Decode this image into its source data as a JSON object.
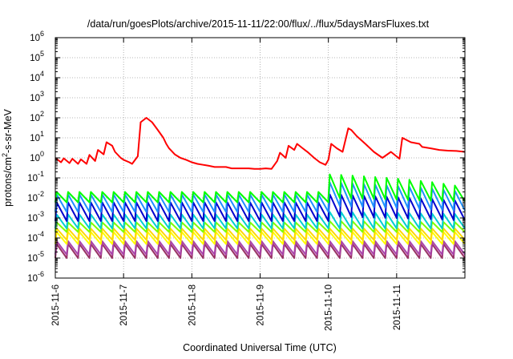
{
  "chart_data": {
    "type": "line",
    "title": "/data/run/goesPlots/archive/2015-11-11/22:00/flux/../flux/5daysMarsFluxes.txt",
    "xlabel": "Coordinated Universal Time (UTC)",
    "ylabel_prefix": "protons/cm",
    "ylabel_sup": "2",
    "ylabel_suffix": "-s-sr-MeV",
    "yscale": "log",
    "ylim": [
      1e-06,
      1000000.0
    ],
    "xlim": [
      "2015-11-06T00:00",
      "2015-11-12T00:00"
    ],
    "grid": true,
    "legend": "none",
    "x_ticks": [
      "2015-11-6",
      "2015-11-7",
      "2015-11-8",
      "2015-11-9",
      "2015-11-10",
      "2015-11-11"
    ],
    "y_ticks": [
      {
        "base": "10",
        "exp": "-6"
      },
      {
        "base": "10",
        "exp": "-5"
      },
      {
        "base": "10",
        "exp": "-4"
      },
      {
        "base": "10",
        "exp": "-3"
      },
      {
        "base": "10",
        "exp": "-2"
      },
      {
        "base": "10",
        "exp": "-1"
      },
      {
        "base": "10",
        "exp": "0"
      },
      {
        "base": "10",
        "exp": "1"
      },
      {
        "base": "10",
        "exp": "2"
      },
      {
        "base": "10",
        "exp": "3"
      },
      {
        "base": "10",
        "exp": "4"
      },
      {
        "base": "10",
        "exp": "5"
      },
      {
        "base": "10",
        "exp": "6"
      }
    ],
    "series": [
      {
        "color": "#ff0000",
        "x": [
          "2015-11-06T00:00",
          "2015-11-06T02:00",
          "2015-11-06T03:00",
          "2015-11-06T05:00",
          "2015-11-06T06:00",
          "2015-11-06T08:00",
          "2015-11-06T09:00",
          "2015-11-06T11:00",
          "2015-11-06T12:00",
          "2015-11-06T14:00",
          "2015-11-06T15:00",
          "2015-11-06T17:00",
          "2015-11-06T18:00",
          "2015-11-06T20:00",
          "2015-11-06T21:00",
          "2015-11-06T23:00",
          "2015-11-07T00:00",
          "2015-11-07T02:00",
          "2015-11-07T03:00",
          "2015-11-07T05:00",
          "2015-11-07T06:00",
          "2015-11-07T08:00",
          "2015-11-07T10:00",
          "2015-11-07T12:00",
          "2015-11-07T14:00",
          "2015-11-07T15:00",
          "2015-11-07T16:00",
          "2015-11-07T18:00",
          "2015-11-07T20:00",
          "2015-11-07T22:00",
          "2015-11-08T00:00",
          "2015-11-08T02:00",
          "2015-11-08T04:00",
          "2015-11-08T06:00",
          "2015-11-08T08:00",
          "2015-11-08T10:00",
          "2015-11-08T12:00",
          "2015-11-08T14:00",
          "2015-11-08T16:00",
          "2015-11-08T18:00",
          "2015-11-08T20:00",
          "2015-11-08T22:00",
          "2015-11-09T00:00",
          "2015-11-09T02:00",
          "2015-11-09T04:00",
          "2015-11-09T06:00",
          "2015-11-09T07:00",
          "2015-11-09T09:00",
          "2015-11-09T10:00",
          "2015-11-09T12:00",
          "2015-11-09T13:00",
          "2015-11-09T15:00",
          "2015-11-09T17:00",
          "2015-11-09T19:00",
          "2015-11-09T21:00",
          "2015-11-09T23:00",
          "2015-11-10T00:00",
          "2015-11-10T01:00",
          "2015-11-10T03:00",
          "2015-11-10T05:00",
          "2015-11-10T07:00",
          "2015-11-10T08:00",
          "2015-11-10T10:00",
          "2015-11-10T13:00",
          "2015-11-10T16:00",
          "2015-11-10T19:00",
          "2015-11-10T22:00",
          "2015-11-11T01:00",
          "2015-11-11T02:00",
          "2015-11-11T05:00",
          "2015-11-11T08:00",
          "2015-11-11T09:00",
          "2015-11-11T12:00",
          "2015-11-11T15:00",
          "2015-11-11T18:00",
          "2015-11-11T21:00",
          "2015-11-11T23:59"
        ],
        "values": [
          1.0,
          0.6,
          0.95,
          0.55,
          0.9,
          0.5,
          0.85,
          0.5,
          1.4,
          0.7,
          2.5,
          1.5,
          6.0,
          4.0,
          2.0,
          1.0,
          0.8,
          0.6,
          0.5,
          1.2,
          60,
          100,
          60,
          25,
          10,
          5,
          3,
          1.5,
          1.0,
          0.8,
          0.6,
          0.5,
          0.45,
          0.4,
          0.35,
          0.35,
          0.35,
          0.3,
          0.3,
          0.3,
          0.3,
          0.28,
          0.28,
          0.3,
          0.28,
          0.7,
          1.8,
          1.0,
          4.0,
          2.5,
          5.0,
          3.0,
          1.8,
          1.0,
          0.6,
          0.45,
          0.8,
          5.0,
          3.0,
          2.0,
          30,
          25,
          12,
          5,
          2.0,
          1.0,
          2.0,
          0.9,
          10,
          6,
          5,
          3.5,
          3.0,
          2.5,
          2.3,
          2.2,
          2.0
        ]
      }
    ],
    "oscillating_series": [
      {
        "color": "#00ff00",
        "low": 0.006,
        "high": 0.02,
        "low_after": 0.01,
        "high_after": 0.15,
        "period_hours": 4
      },
      {
        "color": "#1e90ff",
        "low": 0.002,
        "high": 0.015,
        "low_after": 0.004,
        "high_after": 0.06,
        "period_hours": 4
      },
      {
        "color": "#0000cd",
        "low": 0.0007,
        "high": 0.006,
        "low_after": 0.0012,
        "high_after": 0.015,
        "period_hours": 4
      },
      {
        "color": "#00ced1",
        "low": 0.0003,
        "high": 0.0015,
        "low_after": 0.0003,
        "high_after": 0.002,
        "period_hours": 4
      },
      {
        "color": "#7fff00",
        "low": 0.0002,
        "high": 0.0006,
        "low_after": 0.0002,
        "high_after": 0.0007,
        "period_hours": 4
      },
      {
        "color": "#ffd700",
        "low": 8e-05,
        "high": 0.0003,
        "low_after": 8e-05,
        "high_after": 0.0003,
        "period_hours": 4
      },
      {
        "color": "#ffff00",
        "low": 5e-05,
        "high": 0.0002,
        "low_after": 5e-05,
        "high_after": 0.0002,
        "period_hours": 4
      },
      {
        "color": "#aa44aa",
        "low": 1.5e-05,
        "high": 7e-05,
        "low_after": 1.5e-05,
        "high_after": 7e-05,
        "period_hours": 4
      },
      {
        "color": "#993366",
        "low": 1e-05,
        "high": 5e-05,
        "low_after": 1e-05,
        "high_after": 5e-05,
        "period_hours": 4
      }
    ],
    "colors": {
      "background": "#ffffff",
      "grid": "#a0a0a0",
      "axis": "#000000"
    }
  }
}
